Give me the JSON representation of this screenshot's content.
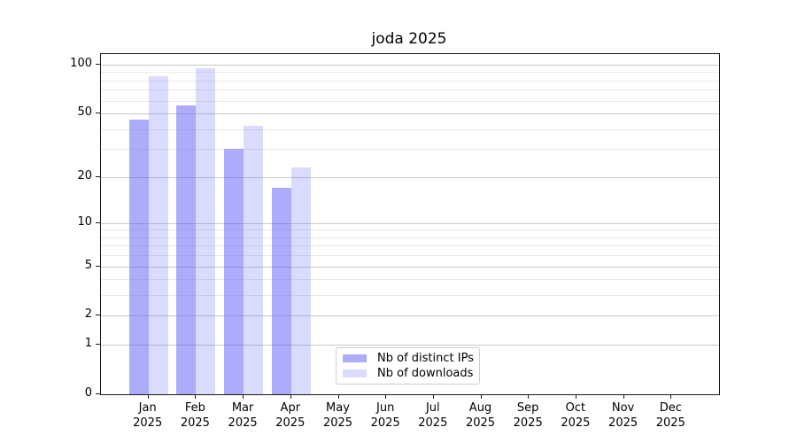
{
  "chart_data": {
    "type": "bar",
    "title": "joda 2025",
    "categories": [
      "Jan 2025",
      "Feb 2025",
      "Mar 2025",
      "Apr 2025",
      "May 2025",
      "Jun 2025",
      "Jul 2025",
      "Aug 2025",
      "Sep 2025",
      "Oct 2025",
      "Nov 2025",
      "Dec 2025"
    ],
    "series": [
      {
        "name": "Nb of distinct IPs",
        "color": "#5a5af5",
        "alpha": 0.5,
        "values": [
          46,
          56,
          30,
          17,
          null,
          null,
          null,
          null,
          null,
          null,
          null,
          null
        ]
      },
      {
        "name": "Nb of downloads",
        "color": "#5a5af5",
        "alpha": 0.22,
        "values": [
          85,
          95,
          42,
          23,
          null,
          null,
          null,
          null,
          null,
          null,
          null,
          null
        ]
      }
    ],
    "y_scale": "log1p",
    "y_major_ticks": [
      0,
      1,
      2,
      5,
      10,
      20,
      50,
      100
    ],
    "y_minor_ticks": [
      3,
      4,
      6,
      7,
      8,
      9,
      30,
      40,
      60,
      70,
      80,
      90
    ],
    "ylim": [
      0,
      116
    ],
    "grid": true,
    "legend_position": "lower center",
    "colors": {
      "axis": "#1a1a1a",
      "grid_major": "#c9c9c9",
      "grid_minor": "#e9e9e9",
      "bar_distinct_ips_apparent": "#acacfa",
      "bar_downloads_apparent": "#dbdbfc"
    }
  }
}
